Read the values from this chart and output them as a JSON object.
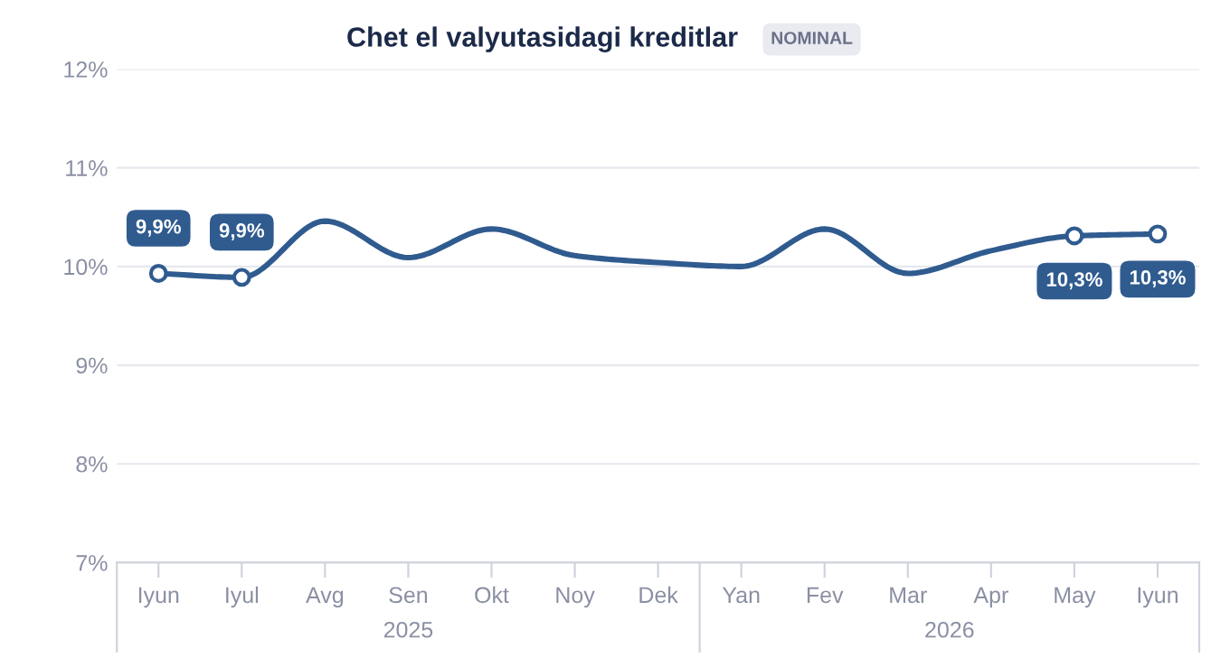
{
  "chart_data": {
    "type": "line",
    "title": "Chet el valyutasidagi kreditlar",
    "subtitle": "NOMINAL",
    "categories": [
      "Iyun",
      "Iyul",
      "Avg",
      "Sen",
      "Okt",
      "Noy",
      "Dek",
      "Yan",
      "Fev",
      "Mar",
      "Apr",
      "May",
      "Iyun"
    ],
    "series": [
      {
        "color": "#2f5b8f",
        "values": [
          9.93,
          9.89,
          10.46,
          10.09,
          10.38,
          10.11,
          10.04,
          10.0,
          10.38,
          9.93,
          10.16,
          10.31,
          10.33
        ],
        "value_labels": [
          "9,9%",
          "9,9%",
          null,
          null,
          null,
          null,
          null,
          null,
          null,
          null,
          null,
          "10,3%",
          "10,3%"
        ]
      }
    ],
    "annotations": [
      "2025",
      "2026"
    ],
    "ylim": [
      7,
      12
    ],
    "yticks": [
      {
        "value": 7,
        "label": "7%"
      },
      {
        "value": 8,
        "label": "8%"
      },
      {
        "value": 9,
        "label": "9%"
      },
      {
        "value": 10,
        "label": "10%"
      },
      {
        "value": 11,
        "label": "11%"
      },
      {
        "value": 12,
        "label": "12%"
      }
    ],
    "grid": "y",
    "legend": false,
    "line_style": "solid"
  }
}
